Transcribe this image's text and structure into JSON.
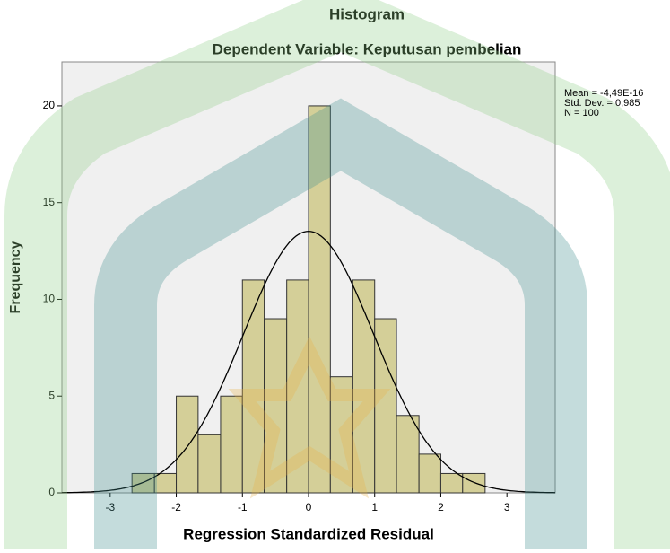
{
  "chart_data": {
    "type": "histogram",
    "title": "Histogram",
    "subtitle": "Dependent Variable: Keputusan pembelian",
    "x_label": "Regression Standardized Residual",
    "y_label": "Frequency",
    "bins": [
      -2.67,
      -2.33,
      -2,
      -1.67,
      -1.33,
      -1,
      -0.67,
      -0.33,
      0,
      0.33,
      0.67,
      1,
      1.33,
      1.67,
      2,
      2.33,
      2.67
    ],
    "values": [
      1,
      1,
      5,
      3,
      5,
      11,
      9,
      11,
      20,
      6,
      11,
      9,
      4,
      2,
      1,
      1
    ],
    "color": "#d4cf98",
    "xlim": [
      -3.73,
      3.73
    ],
    "ylim": [
      0,
      22.27
    ],
    "xticks": [
      -3,
      -2,
      -1,
      0,
      1,
      2,
      3
    ],
    "yticks": [
      0,
      5,
      10,
      15,
      20
    ],
    "normal_curve": true,
    "stats": [
      {
        "value": -4.49e-16,
        "label": "Mean = -4,49E-16"
      },
      {
        "value": 0.985,
        "label": "Std. Dev. = 0,985"
      },
      {
        "value": 100,
        "label": "N = 100"
      }
    ]
  }
}
